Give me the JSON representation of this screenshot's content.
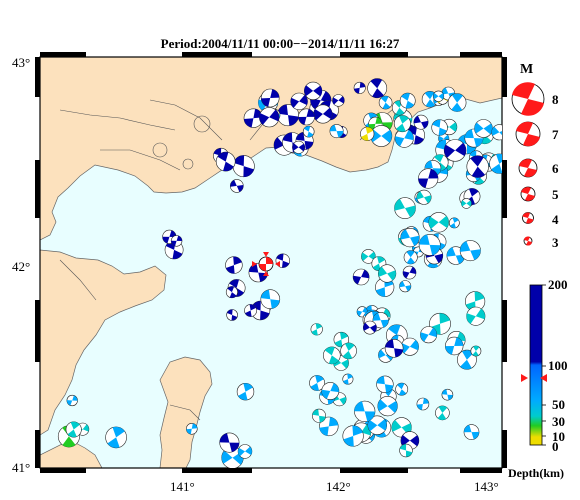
{
  "title": "Period:2004/11/11 00:00−−2014/11/11 16:27",
  "map": {
    "lat_labels": [
      "43°",
      "42°",
      "41°"
    ],
    "lon_labels": [
      "141°",
      "142°",
      "143°"
    ]
  },
  "magnitude_legend": {
    "header": "M",
    "labels": [
      "8",
      "7",
      "6",
      "5",
      "4",
      "3"
    ],
    "color": "#ff1a1a"
  },
  "depth_legend": {
    "ticks": [
      "200",
      "100",
      "50",
      "30",
      "10",
      "0"
    ],
    "axis_label": "Depth(km)",
    "colors": {
      "deep": "#0000aa",
      "mid": "#00aaff",
      "shallow": "#00cccc",
      "green": "#22cc22",
      "yellow": "#eedd00"
    }
  },
  "colors": {
    "land": "#fce1bd",
    "sea": "#e8feff",
    "mainshock": "#ff1a1a"
  }
}
